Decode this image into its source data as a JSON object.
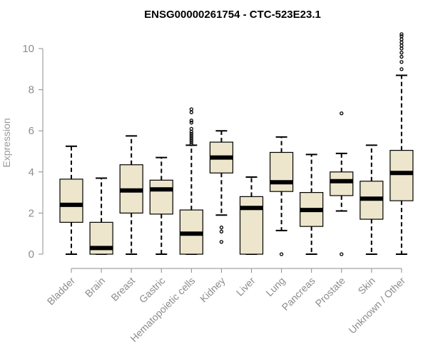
{
  "chart_data": {
    "type": "box",
    "title": "ENSG00000261754 - CTC-523E23.1",
    "ylabel": "Expression",
    "xlabel": "",
    "ylim": [
      0,
      10.8
    ],
    "yticks": [
      0,
      2,
      4,
      6,
      8,
      10
    ],
    "box_fill": "#ede6cc",
    "categories": [
      "Bladder",
      "Brain",
      "Breast",
      "Gastric",
      "Hematopoietic cells",
      "Kidney",
      "Liver",
      "Lung",
      "Pancreas",
      "Prostate",
      "Skin",
      "Unknown / Other"
    ],
    "boxes": [
      {
        "min": 0,
        "q1": 1.55,
        "median": 2.4,
        "q3": 3.65,
        "max": 5.25,
        "outliers": []
      },
      {
        "min": 0,
        "q1": 0.0,
        "median": 0.3,
        "q3": 1.55,
        "max": 3.7,
        "outliers": []
      },
      {
        "min": 0,
        "q1": 2.0,
        "median": 3.1,
        "q3": 4.35,
        "max": 5.75,
        "outliers": []
      },
      {
        "min": 0,
        "q1": 1.95,
        "median": 3.15,
        "q3": 3.6,
        "max": 4.7,
        "outliers": []
      },
      {
        "min": 0,
        "q1": 0.0,
        "median": 1.0,
        "q3": 2.15,
        "max": 5.3,
        "outliers": [
          5.35,
          5.45,
          5.55,
          5.65,
          5.75,
          5.85,
          5.95,
          6.1,
          6.4,
          6.5,
          6.9,
          7.05
        ]
      },
      {
        "min": 1.9,
        "q1": 3.95,
        "median": 4.7,
        "q3": 5.45,
        "max": 6.0,
        "outliers": [
          0.6,
          1.1,
          1.3
        ]
      },
      {
        "min": 0,
        "q1": 0.0,
        "median": 2.25,
        "q3": 2.8,
        "max": 3.75,
        "outliers": []
      },
      {
        "min": 1.15,
        "q1": 3.05,
        "median": 3.5,
        "q3": 4.95,
        "max": 5.7,
        "outliers": [
          0.0
        ]
      },
      {
        "min": 0,
        "q1": 1.35,
        "median": 2.15,
        "q3": 3.0,
        "max": 4.85,
        "outliers": []
      },
      {
        "min": 2.1,
        "q1": 2.85,
        "median": 3.55,
        "q3": 4.0,
        "max": 4.9,
        "outliers": [
          6.85,
          0.0
        ]
      },
      {
        "min": 0,
        "q1": 1.7,
        "median": 2.7,
        "q3": 3.55,
        "max": 5.3,
        "outliers": []
      },
      {
        "min": 0,
        "q1": 2.6,
        "median": 3.95,
        "q3": 5.05,
        "max": 8.7,
        "outliers": [
          9.0,
          9.35,
          9.6,
          9.8,
          10.0,
          10.15,
          10.3,
          10.45,
          10.6,
          10.7
        ]
      }
    ]
  }
}
